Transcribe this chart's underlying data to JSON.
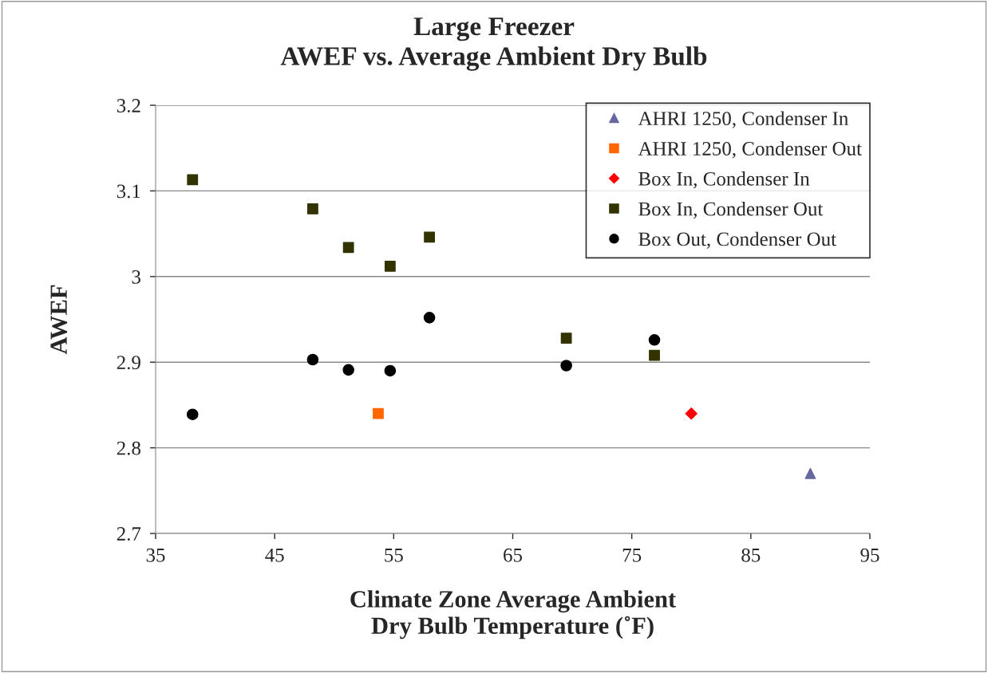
{
  "chart_data": {
    "type": "scatter",
    "title": "Large Freezer\nAWEF vs. Average Ambient Dry Bulb",
    "xlabel": "Climate Zone Average Ambient\nDry Bulb Temperature (˚F)",
    "ylabel": "AWEF",
    "xlim": [
      35,
      95
    ],
    "xticks": [
      35,
      45,
      55,
      65,
      75,
      85,
      95
    ],
    "ylim": [
      2.7,
      3.2
    ],
    "yticks": [
      2.7,
      2.8,
      2.9,
      3,
      3.1,
      3.2
    ],
    "grid": "y",
    "legend": "top right",
    "series": [
      {
        "name": "AHRI 1250, Condenser In",
        "color": "#6666a0",
        "marker": "triangle",
        "x": [
          90.0
        ],
        "values": [
          2.77
        ]
      },
      {
        "name": "AHRI 1250, Condenser Out",
        "color": "#ff6600",
        "marker": "square",
        "x": [
          53.7
        ],
        "values": [
          2.84
        ]
      },
      {
        "name": "Box In, Condenser In",
        "color": "#ff0000",
        "marker": "diamond",
        "x": [
          80.0
        ],
        "values": [
          2.84
        ]
      },
      {
        "name": "Box In, Condenser Out",
        "color": "#333300",
        "marker": "square",
        "x": [
          38.1,
          48.2,
          51.2,
          54.7,
          58.0,
          69.5,
          76.9
        ],
        "values": [
          3.113,
          3.079,
          3.034,
          3.012,
          3.046,
          2.928,
          2.908
        ]
      },
      {
        "name": "Box Out, Condenser Out",
        "color": "#000000",
        "marker": "circle",
        "x": [
          38.1,
          48.2,
          51.2,
          54.7,
          58.0,
          69.5,
          76.9
        ],
        "values": [
          2.839,
          2.903,
          2.891,
          2.89,
          2.952,
          2.896,
          2.926
        ]
      }
    ]
  }
}
